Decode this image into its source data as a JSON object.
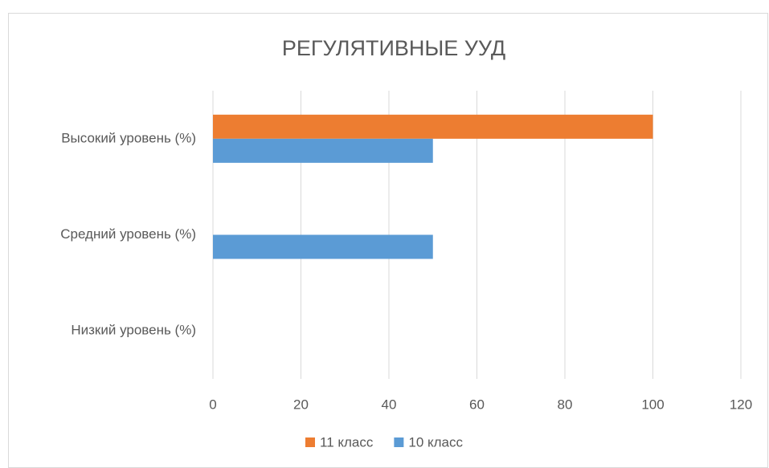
{
  "chart_data": {
    "type": "hbar",
    "title": "РЕГУЛЯТИВНЫЕ УУД",
    "categories": [
      "Высокий уровень (%)",
      "Средний уровень (%)",
      "Низкий уровень (%)"
    ],
    "series": [
      {
        "name": "11 класс",
        "color": "#ed7d31",
        "values": [
          100,
          0,
          0
        ]
      },
      {
        "name": "10 класс",
        "color": "#5b9bd5",
        "values": [
          50,
          50,
          0
        ]
      }
    ],
    "xlim": [
      0,
      120
    ],
    "xticks": [
      0,
      20,
      40,
      60,
      80,
      100,
      120
    ],
    "grid": true,
    "legend": "bottom"
  }
}
